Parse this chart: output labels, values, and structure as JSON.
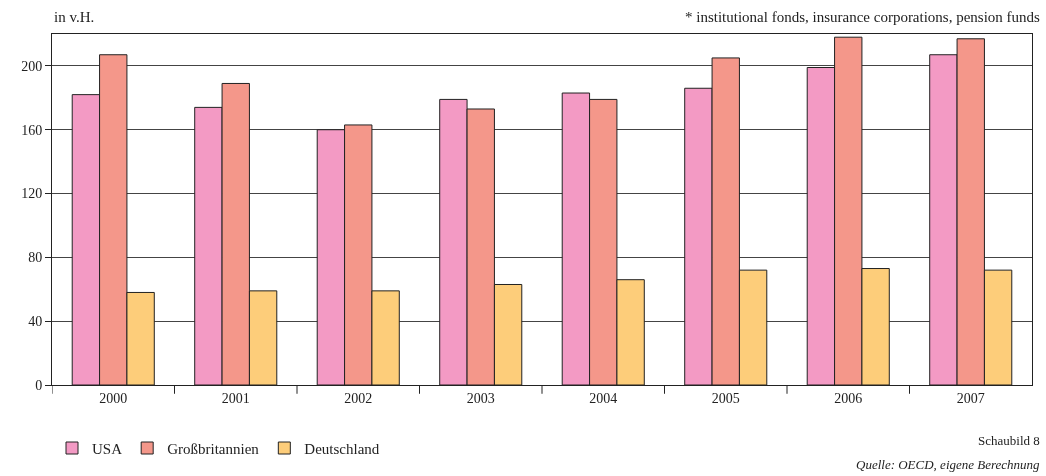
{
  "chart_data": {
    "type": "bar",
    "ylabel": "in v.H.",
    "categories": [
      "2000",
      "2001",
      "2002",
      "2003",
      "2004",
      "2005",
      "2006",
      "2007"
    ],
    "series": [
      {
        "name": "USA",
        "color": "#f39ac4",
        "values": [
          182,
          174,
          160,
          179,
          183,
          186,
          199,
          207
        ]
      },
      {
        "name": "Großbritannien",
        "color": "#f4978a",
        "values": [
          207,
          189,
          163,
          173,
          179,
          205,
          218,
          217
        ]
      },
      {
        "name": "Deutschland",
        "color": "#fdcd7a",
        "values": [
          58,
          59,
          59,
          63,
          66,
          72,
          73,
          72
        ]
      }
    ],
    "ylim": [
      0,
      220
    ],
    "yticks": [
      0,
      40,
      80,
      120,
      160,
      200
    ],
    "grid": "y",
    "legend": "bottom",
    "annotations": [
      "* institutional fonds, insurance corporations, pension funds",
      "Schaubild 8",
      "Quelle: OECD, eigene Berechnung"
    ]
  }
}
